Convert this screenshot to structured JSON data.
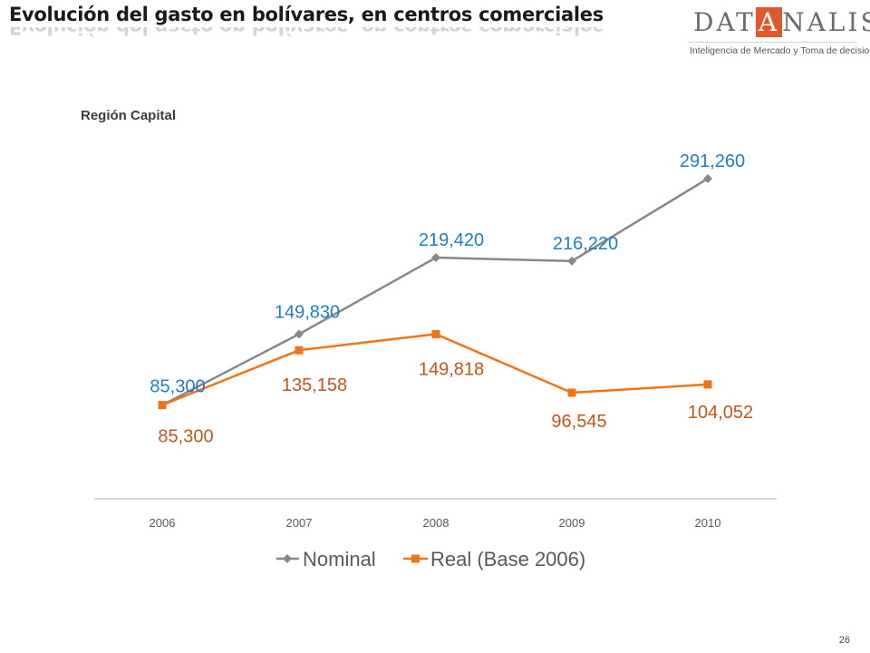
{
  "slide": {
    "title": "Evolución del gasto en bolívares, en centros comerciales",
    "subtitle": "Región Capital",
    "page_number": "26"
  },
  "logo": {
    "word_before": "DAT",
    "word_boxed": "A",
    "word_after": "NALISIS",
    "tagline": "Inteligencia de Mercado y Toma de decisiones"
  },
  "chart_data": {
    "type": "line",
    "categories": [
      "2006",
      "2007",
      "2008",
      "2009",
      "2010"
    ],
    "ylim": [
      0,
      330000
    ],
    "grid": false,
    "legend_position": "bottom",
    "series": [
      {
        "name": "Nominal",
        "values": [
          85300,
          149830,
          219420,
          216220,
          291260
        ],
        "labels": [
          "85,300",
          "149,830",
          "219,420",
          "216,220",
          "291,260"
        ],
        "line_color": "#888888",
        "label_color": "#1f7fc4",
        "marker": "diamond"
      },
      {
        "name": "Real (Base 2006)",
        "values": [
          85300,
          135158,
          149818,
          96545,
          104052
        ],
        "labels": [
          "85,300",
          "135,158",
          "149,818",
          "96,545",
          "104,052"
        ],
        "line_color": "#f07318",
        "label_color": "#c3561a",
        "marker": "square"
      }
    ]
  }
}
